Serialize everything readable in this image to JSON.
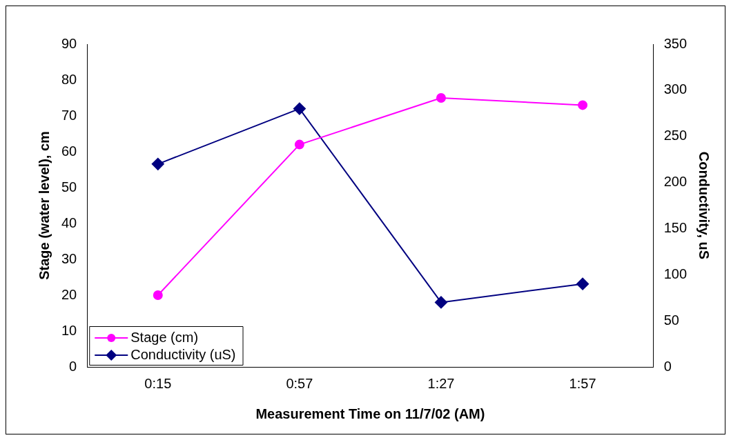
{
  "chart_data": {
    "type": "line",
    "xlabel": "Measurement Time on 11/7/02 (AM)",
    "ylabel": "Stage (water level), cm",
    "y2label": "Conductivity, uS",
    "categories": [
      "0:15",
      "0:57",
      "1:27",
      "1:57"
    ],
    "series": [
      {
        "name": "Stage (cm)",
        "color": "#ff00ff",
        "values": [
          20,
          62,
          75,
          73
        ],
        "marker": "circle"
      },
      {
        "name": "Conductivity (uS)",
        "color": "#000080",
        "values": [
          220,
          280,
          70,
          90
        ],
        "axis": "y2",
        "marker": "diamond"
      }
    ],
    "ylim": [
      0,
      90
    ],
    "yticks": [
      0,
      10,
      20,
      30,
      40,
      50,
      60,
      70,
      80,
      90
    ],
    "y2lim": [
      0,
      350
    ],
    "y2ticks": [
      0,
      50,
      100,
      150,
      200,
      250,
      300,
      350
    ],
    "grid": false,
    "legend": "bottom left",
    "line_style": "solid"
  }
}
